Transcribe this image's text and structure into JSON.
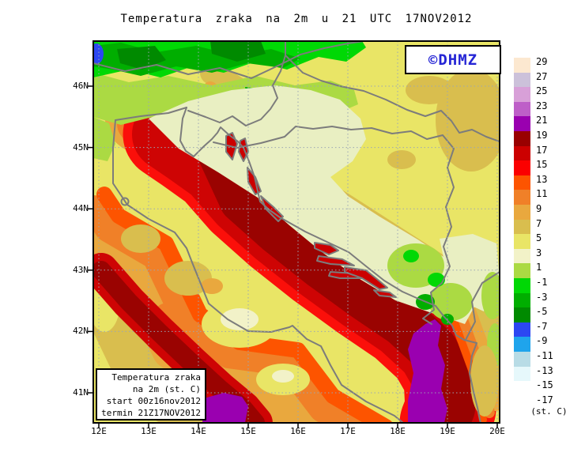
{
  "title": "Temperatura zraka na 2m u 21 UTC 17NOV2012",
  "logo": {
    "text": "©DHMZ",
    "color": "#2525D5"
  },
  "info_box": {
    "lines": [
      "Temperatura zraka",
      "na 2m (st. C)",
      "start 00z16nov2012",
      "termin 21Z17NOV2012"
    ]
  },
  "axes": {
    "lon_labels": [
      "12E",
      "13E",
      "14E",
      "15E",
      "16E",
      "17E",
      "18E",
      "19E",
      "20E"
    ],
    "lat_labels": [
      "46N",
      "45N",
      "44N",
      "43N",
      "42N",
      "41N"
    ]
  },
  "colorbar": {
    "unit_label": "(st. C)",
    "entries": [
      {
        "label": "29",
        "color": "#FCE8D0"
      },
      {
        "label": "27",
        "color": "#CCC1DA"
      },
      {
        "label": "25",
        "color": "#D8A0D8"
      },
      {
        "label": "23",
        "color": "#BE5FC8"
      },
      {
        "label": "21",
        "color": "#9A00B0"
      },
      {
        "label": "19",
        "color": "#990000"
      },
      {
        "label": "17",
        "color": "#CC0000"
      },
      {
        "label": "15",
        "color": "#FB0000"
      },
      {
        "label": "13",
        "color": "#FD5400"
      },
      {
        "label": "11",
        "color": "#F08028"
      },
      {
        "label": "9",
        "color": "#E9A83E"
      },
      {
        "label": "7",
        "color": "#D9BE4E"
      },
      {
        "label": "5",
        "color": "#E9E566"
      },
      {
        "label": "3",
        "color": "#F2F2C8"
      },
      {
        "label": "1",
        "color": "#ABDA43"
      },
      {
        "label": "-1",
        "color": "#00D805"
      },
      {
        "label": "-3",
        "color": "#00AE00"
      },
      {
        "label": "-5",
        "color": "#008A00"
      },
      {
        "label": "-7",
        "color": "#2C47F2"
      },
      {
        "label": "-9",
        "color": "#1FA4EC"
      },
      {
        "label": "-11",
        "color": "#B8DCE6"
      },
      {
        "label": "-13",
        "color": "#E6F8FB"
      },
      {
        "label": "-15",
        "color": "#FFFFFF"
      },
      {
        "label": "-17",
        "color": "#FFFFFF"
      }
    ]
  },
  "map": {
    "coastline_color": "#7C7C7C",
    "grid_color": "#9AA6B4",
    "frame_color": "#000000"
  }
}
